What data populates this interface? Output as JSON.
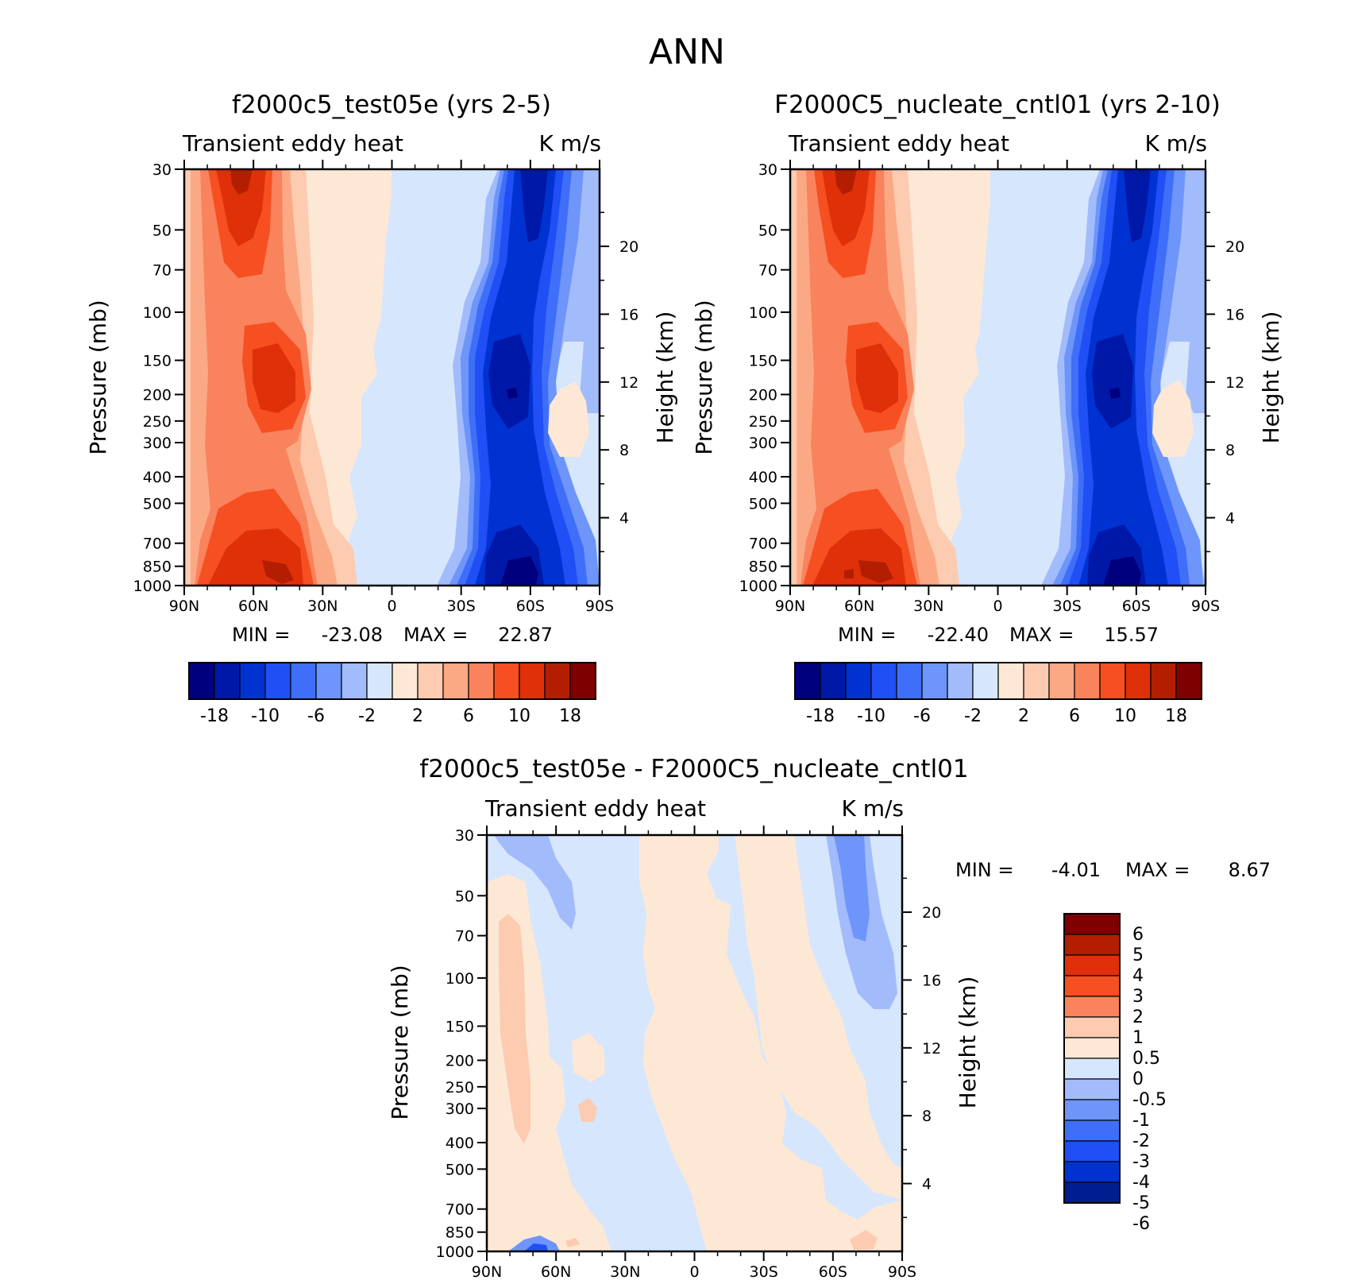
{
  "title": "ANN",
  "colors": {
    "neg": [
      "#00007f",
      "#0018a8",
      "#0032d2",
      "#1f4ff5",
      "#3f6ff8",
      "#6d95fa",
      "#a2bbfb",
      "#d6e6fd"
    ],
    "pos": [
      "#fde8d6",
      "#fccbb0",
      "#fba985",
      "#f9835c",
      "#f64f22",
      "#df300a",
      "#b31e00",
      "#7f0000"
    ],
    "diff_neg": [
      "#001e90",
      "#0032d2",
      "#1f4ff5",
      "#3f6ff8",
      "#6d95fa",
      "#a2bbfb",
      "#d6e6fd"
    ],
    "diff_pos": [
      "#fde8d6",
      "#fccbb0",
      "#f9835c",
      "#f64f22",
      "#df300a",
      "#b31e00",
      "#7f0000"
    ]
  },
  "chart_data": [
    {
      "type": "heatmap",
      "title": "f2000c5_test05e (yrs 2-5)",
      "left_label": "Transient eddy heat",
      "right_label": "K m/s",
      "xlabel": "",
      "ylabel": "Pressure (mb)",
      "y2label": "Height (km)",
      "x_ticks": [
        "90N",
        "60N",
        "30N",
        "0",
        "30S",
        "60S",
        "90S"
      ],
      "x_range": [
        90,
        -90
      ],
      "y_ticks": [
        30,
        50,
        70,
        100,
        150,
        200,
        250,
        300,
        400,
        500,
        700,
        850,
        1000
      ],
      "y_range": [
        30,
        1000
      ],
      "y_scale": "log",
      "y2_ticks": [
        4,
        8,
        12,
        16,
        20
      ],
      "min_label": "MIN =",
      "min_value": "-23.08",
      "max_label": "MAX =",
      "max_value": "22.87",
      "colorbar_levels": [
        "-18",
        "-10",
        "-6",
        "-2",
        "2",
        "6",
        "10",
        "18"
      ],
      "colorbar_orientation": "horizontal"
    },
    {
      "type": "heatmap",
      "title": "F2000C5_nucleate_cntl01 (yrs 2-10)",
      "left_label": "Transient eddy heat",
      "right_label": "K m/s",
      "xlabel": "",
      "ylabel": "Pressure (mb)",
      "y2label": "Height (km)",
      "x_ticks": [
        "90N",
        "60N",
        "30N",
        "0",
        "30S",
        "60S",
        "90S"
      ],
      "x_range": [
        90,
        -90
      ],
      "y_ticks": [
        30,
        50,
        70,
        100,
        150,
        200,
        250,
        300,
        400,
        500,
        700,
        850,
        1000
      ],
      "y_range": [
        30,
        1000
      ],
      "y_scale": "log",
      "y2_ticks": [
        4,
        8,
        12,
        16,
        20
      ],
      "min_label": "MIN =",
      "min_value": "-22.40",
      "max_label": "MAX =",
      "max_value": "15.57",
      "colorbar_levels": [
        "-18",
        "-10",
        "-6",
        "-2",
        "2",
        "6",
        "10",
        "18"
      ],
      "colorbar_orientation": "horizontal"
    },
    {
      "type": "heatmap",
      "title": "f2000c5_test05e - F2000C5_nucleate_cntl01",
      "left_label": "Transient eddy heat",
      "right_label": "K m/s",
      "xlabel": "",
      "ylabel": "Pressure (mb)",
      "y2label": "Height (km)",
      "x_ticks": [
        "90N",
        "60N",
        "30N",
        "0",
        "30S",
        "60S",
        "90S"
      ],
      "x_range": [
        90,
        -90
      ],
      "y_ticks": [
        30,
        50,
        70,
        100,
        150,
        200,
        250,
        300,
        400,
        500,
        700,
        850,
        1000
      ],
      "y_range": [
        30,
        1000
      ],
      "y_scale": "log",
      "y2_ticks": [
        4,
        8,
        12,
        16,
        20
      ],
      "min_label": "MIN =",
      "min_value": "-4.01",
      "max_label": "MAX =",
      "max_value": "8.67",
      "colorbar_levels": [
        "6",
        "5",
        "4",
        "3",
        "2",
        "1",
        "0.5",
        "0",
        "-0.5",
        "-1",
        "-2",
        "-3",
        "-4",
        "-5",
        "-6"
      ],
      "colorbar_orientation": "vertical"
    }
  ]
}
